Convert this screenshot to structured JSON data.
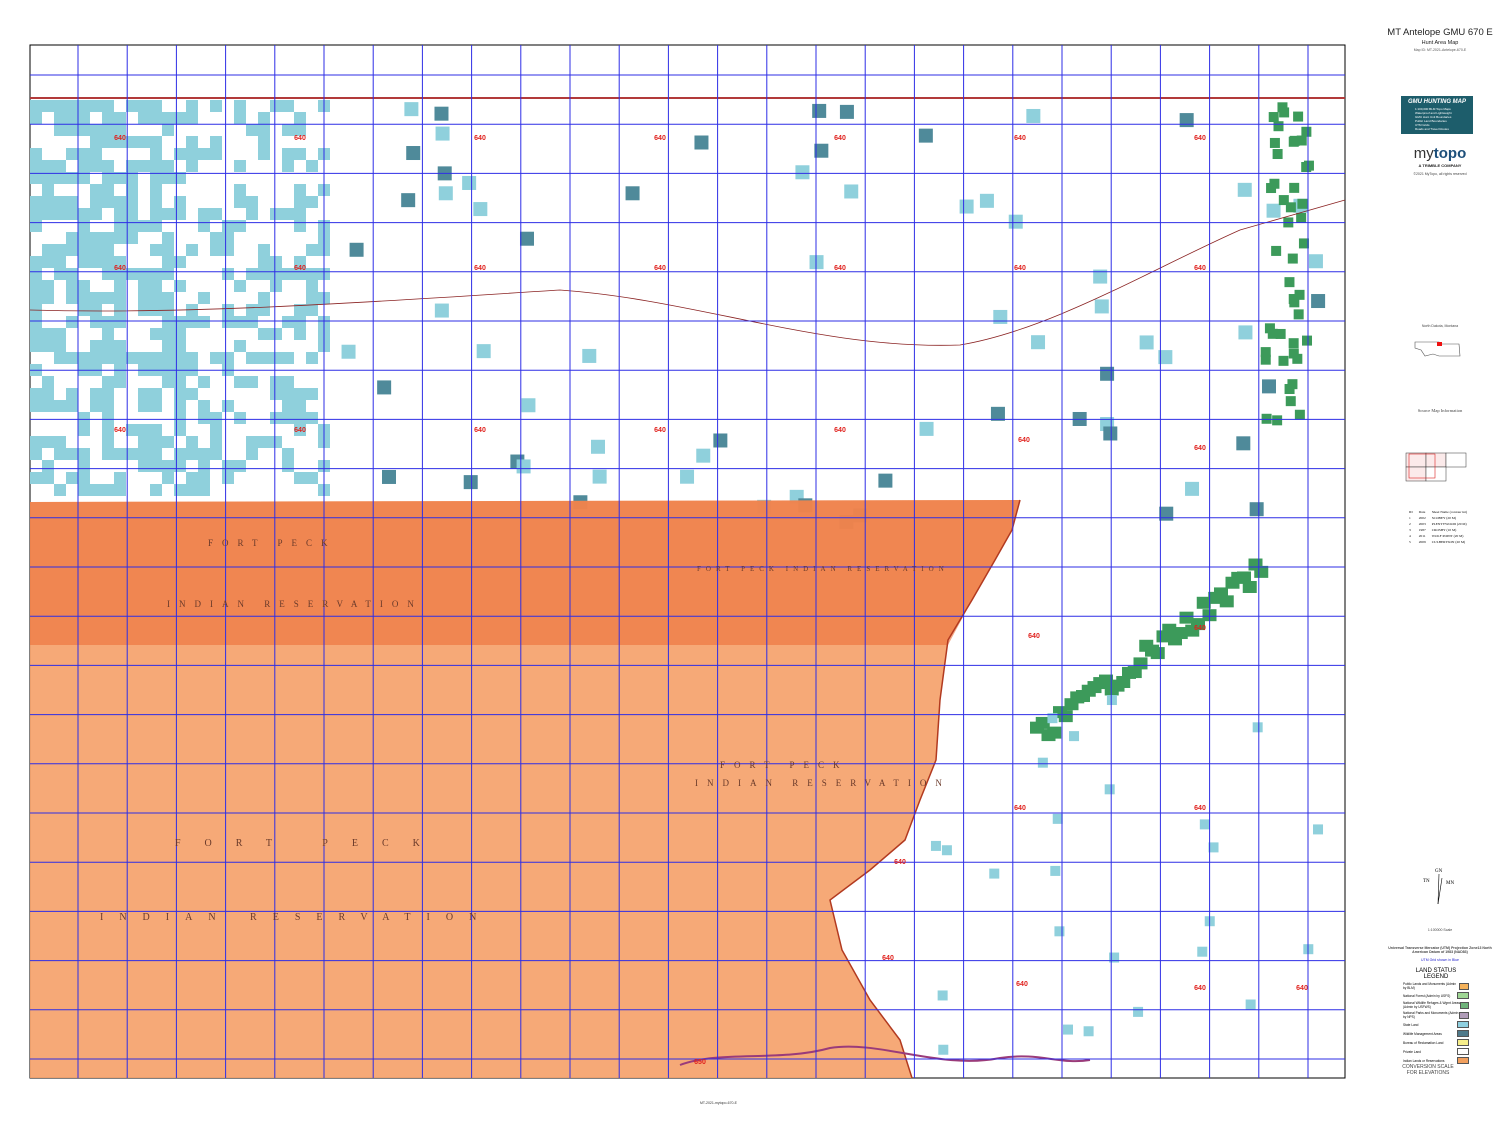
{
  "header": {
    "title": "MT Antelope GMU 670 E",
    "subtitle": "Hunt Area Map",
    "map_id": "Map ID: MT-2021-Antelope-670-E"
  },
  "promo": {
    "heading": "GMU HUNTING MAP",
    "items": [
      "1:100,000 BLM Topo Maps",
      "Waterproof and Lightweight",
      "GMU Hunt Unit Boundaries",
      "Public Land Boundaries",
      "UTM Grids",
      "Roads and Travel Routes"
    ]
  },
  "logo": {
    "brand_light": "my",
    "brand_bold": "topo",
    "tagline": "A TRIMBLE COMPANY",
    "copyright": "©2021 MyTopo, all rights reserved"
  },
  "locator": {
    "label": "North Dakota, Montana"
  },
  "source": {
    "heading": "Source Map Information",
    "sheets_header": [
      "ID",
      "Date",
      "Sheet Name (contour int)"
    ],
    "sheets": [
      [
        "1",
        "2002",
        "SCOBEY (20 M)"
      ],
      [
        "2",
        "2003",
        "PLENTYWOOD (20 M)"
      ],
      [
        "3",
        "1987",
        "CROSBY (10 M)"
      ],
      [
        "4",
        "2011",
        "WOLF POINT (20 M)"
      ],
      [
        "5",
        "2009",
        "CULBERTSON (20 M)"
      ]
    ]
  },
  "north_arrow": {
    "gn": "GN",
    "tn": "TN",
    "mn": "MN"
  },
  "scale": {
    "ratio": "1:100000 Scale",
    "projection": "Universal Transverse Mercator (UTM) Projection Zone13 North American Datum of 1983 (NAD83)",
    "grid_note": "UTM Grid shown in Blue"
  },
  "legend": {
    "title": "LAND STATUS LEGEND",
    "items": [
      {
        "label": "Public Lands and Monuments (Admin by BLM)",
        "color": "#f5b25a"
      },
      {
        "label": "National Forest (Admin by USFS)",
        "color": "#9fd694"
      },
      {
        "label": "National Wildlife Refuges & Wgrnt Areas (Admin by USFWS)",
        "color": "#6fb37a"
      },
      {
        "label": "National Parks and Monuments (Admin by NPS)",
        "color": "#b09cb8"
      },
      {
        "label": "State Land",
        "color": "#8fd0e0"
      },
      {
        "label": "Wildlife Management Areas",
        "color": "#4f7a8a"
      },
      {
        "label": "Bureau of Reclamation Land",
        "color": "#f6ee8a"
      },
      {
        "label": "Private Land",
        "color": "#ffffff"
      },
      {
        "label": "Indian Lands or Reservations",
        "color": "#f2a05e"
      }
    ]
  },
  "conversion": {
    "label": "CONVERSION SCALE FOR ELEVATIONS"
  },
  "map": {
    "unit_label": "640",
    "unit_label_south": "650",
    "reservation_labels": [
      "FORT PECK",
      "INDIAN RESERVATION",
      "FORT PECK",
      "INDIAN RESERVATION",
      "FORT PECK",
      "INDIAN RESERVATION",
      "FORT PECK INDIAN RESERVATION"
    ],
    "footer": "MT-2021-mytopo-670-E",
    "colors": {
      "grid": "#2e2ee6",
      "reservation": "#f5a26b",
      "reservation_dark": "#ee7a45",
      "state": "#8fd0dc",
      "wma": "#4f8a9a",
      "refuge": "#3c9a5a",
      "unit_label": "#e0201c"
    }
  }
}
